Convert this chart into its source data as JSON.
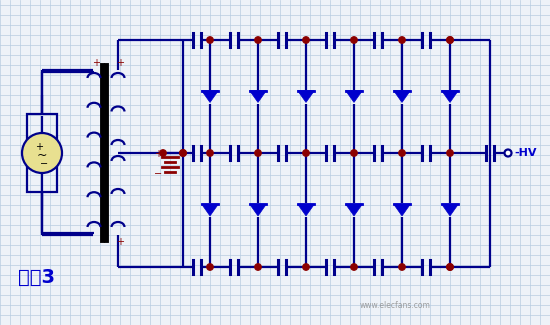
{
  "bg_color": "#eef2f8",
  "grid_color": "#b8cce0",
  "line_color": "#00008B",
  "diode_color": "#0000CC",
  "dot_color": "#8B0000",
  "cap_color": "#00008B",
  "wire_color": "#00008B",
  "label_color": "#0000CD",
  "source_color": "#E8E090",
  "ground_color": "#8B0000",
  "label_text": "电路3",
  "watermark": "www.elecfans.com",
  "fig_width": 5.5,
  "fig_height": 3.25,
  "dpi": 100
}
